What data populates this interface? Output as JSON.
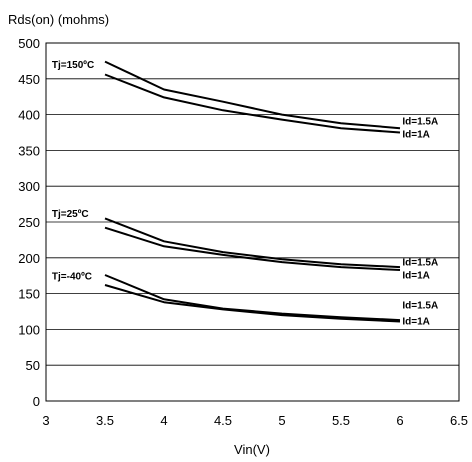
{
  "chart_data": {
    "type": "line",
    "title": "",
    "ylabel": "Rds(on) (mohms)",
    "xlabel": "Vin(V)",
    "xlim": [
      3,
      6.5
    ],
    "ylim": [
      0,
      500
    ],
    "x_ticks": [
      "3",
      "3.5",
      "4",
      "4.5",
      "5",
      "5.5",
      "6",
      "6.5"
    ],
    "y_ticks": [
      "0",
      "50",
      "100",
      "150",
      "200",
      "250",
      "300",
      "350",
      "400",
      "450",
      "500"
    ],
    "grid": "horizontal",
    "x": [
      3.5,
      4,
      4.5,
      5,
      5.5,
      6
    ],
    "series": [
      {
        "name": "Id=1.5A",
        "group": "Tj=150ºC",
        "values": [
          474,
          435,
          418,
          400,
          388,
          381
        ]
      },
      {
        "name": "Id=1A",
        "group": "Tj=150ºC",
        "values": [
          456,
          424,
          406,
          393,
          381,
          375
        ]
      },
      {
        "name": "Id=1.5A",
        "group": "Tj=25ºC",
        "values": [
          255,
          223,
          208,
          198,
          191,
          187
        ]
      },
      {
        "name": "Id=1A",
        "group": "Tj=25ºC",
        "values": [
          242,
          216,
          204,
          194,
          187,
          183
        ]
      },
      {
        "name": "Id=1.5A",
        "group": "Tj=-40ºC",
        "values": [
          176,
          142,
          129,
          122,
          117,
          113
        ]
      },
      {
        "name": "Id=1A",
        "group": "Tj=-40ºC",
        "values": [
          162,
          138,
          128,
          120,
          115,
          111
        ]
      }
    ],
    "group_labels": [
      "Tj=150ºC",
      "Tj=25ºC",
      "Tj=-40ºC"
    ],
    "series_labels": [
      {
        "text": "Id=1.5A",
        "x": 6.02,
        "y": 386
      },
      {
        "text": "Id=1A",
        "x": 6.02,
        "y": 368
      },
      {
        "text": "Id=1.5A",
        "x": 6.02,
        "y": 189
      },
      {
        "text": "Id=1A",
        "x": 6.02,
        "y": 171
      },
      {
        "text": "Id=1.5A",
        "x": 6.02,
        "y": 129
      },
      {
        "text": "Id=1A",
        "x": 6.02,
        "y": 107
      }
    ],
    "group_label_positions": [
      {
        "text": "Tj=150ºC",
        "x": 3.05,
        "y": 465
      },
      {
        "text": "Tj=25ºC",
        "x": 3.05,
        "y": 257
      },
      {
        "text": "Tj=-40ºC",
        "x": 3.05,
        "y": 170
      }
    ]
  }
}
